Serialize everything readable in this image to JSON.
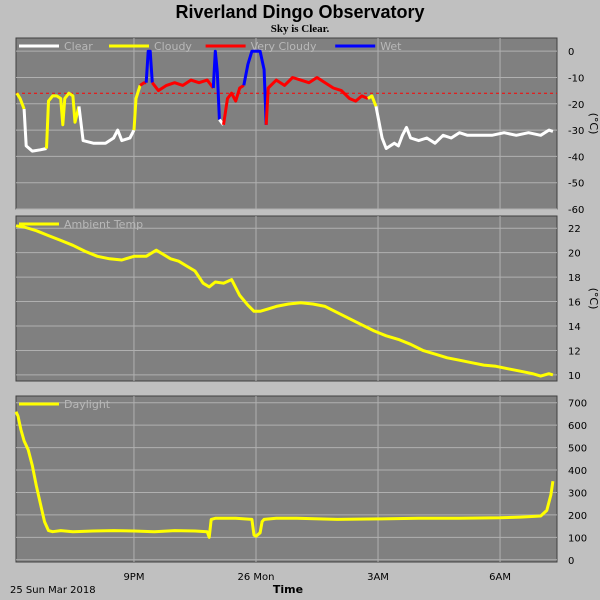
{
  "header": {
    "title": "Riverland Dingo Observatory",
    "subtitle": "Sky is Clear."
  },
  "x_axis": {
    "title": "Time",
    "start_label": "25 Sun Mar 2018",
    "ticks": [
      {
        "label": "9PM",
        "hour": 21
      },
      {
        "label": "26 Mon",
        "hour": 24
      },
      {
        "label": "3AM",
        "hour": 27
      },
      {
        "label": "6AM",
        "hour": 30
      }
    ]
  },
  "colors": {
    "background": "#c0c0c0",
    "plot_bg": "#808080",
    "grid": "#b0b0b0",
    "clear": "#ffffff",
    "cloudy": "#ffff00",
    "very_cloudy": "#ff0000",
    "wet": "#0000ff",
    "temp": "#ffff00",
    "daylight": "#ffff00",
    "threshold": "#ff0000"
  },
  "chart_data": [
    {
      "type": "line",
      "id": "sky",
      "unit": "(°C)",
      "ylim": [
        -60,
        5
      ],
      "yticks": [
        0,
        -10,
        -20,
        -30,
        -40,
        -50,
        -60
      ],
      "threshold": -16,
      "legend": [
        {
          "label": "Clear",
          "color_key": "clear"
        },
        {
          "label": "Cloudy",
          "color_key": "cloudy"
        },
        {
          "label": "Very Cloudy",
          "color_key": "very_cloudy"
        },
        {
          "label": "Wet",
          "color_key": "wet"
        }
      ],
      "segments": [
        {
          "state": "cloudy",
          "points": [
            [
              18.12,
              -16
            ],
            [
              18.2,
              -18
            ],
            [
              18.3,
              -22
            ]
          ]
        },
        {
          "state": "clear",
          "points": [
            [
              18.3,
              -22
            ],
            [
              18.35,
              -36
            ],
            [
              18.5,
              -38
            ],
            [
              18.7,
              -37.5
            ],
            [
              18.85,
              -37
            ]
          ]
        },
        {
          "state": "cloudy",
          "points": [
            [
              18.85,
              -37
            ],
            [
              18.9,
              -19
            ],
            [
              19.0,
              -17
            ],
            [
              19.1,
              -17
            ],
            [
              19.2,
              -18
            ],
            [
              19.25,
              -28
            ],
            [
              19.3,
              -18
            ],
            [
              19.4,
              -16
            ],
            [
              19.5,
              -17
            ],
            [
              19.55,
              -27
            ],
            [
              19.65,
              -21
            ]
          ]
        },
        {
          "state": "clear",
          "points": [
            [
              19.65,
              -21
            ],
            [
              19.75,
              -34
            ],
            [
              20.0,
              -35
            ],
            [
              20.3,
              -35
            ],
            [
              20.5,
              -33
            ],
            [
              20.6,
              -30
            ],
            [
              20.7,
              -34
            ],
            [
              20.9,
              -33
            ],
            [
              21.0,
              -30
            ]
          ]
        },
        {
          "state": "cloudy",
          "points": [
            [
              21.0,
              -30
            ],
            [
              21.05,
              -18
            ],
            [
              21.15,
              -13
            ]
          ]
        },
        {
          "state": "very_cloudy",
          "points": [
            [
              21.15,
              -13
            ],
            [
              21.25,
              -12
            ],
            [
              21.3,
              -12
            ]
          ]
        },
        {
          "state": "wet",
          "points": [
            [
              21.3,
              -12
            ],
            [
              21.35,
              0
            ],
            [
              21.4,
              0
            ],
            [
              21.45,
              -12
            ]
          ]
        },
        {
          "state": "very_cloudy",
          "points": [
            [
              21.45,
              -12
            ],
            [
              21.6,
              -15
            ],
            [
              21.8,
              -13
            ],
            [
              22.0,
              -12
            ],
            [
              22.2,
              -13
            ],
            [
              22.4,
              -11
            ],
            [
              22.6,
              -12
            ],
            [
              22.8,
              -11
            ],
            [
              22.95,
              -14
            ]
          ]
        },
        {
          "state": "wet",
          "points": [
            [
              22.95,
              -14
            ],
            [
              23.0,
              0
            ],
            [
              23.05,
              -8
            ],
            [
              23.1,
              -26
            ]
          ]
        },
        {
          "state": "clear",
          "points": [
            [
              23.1,
              -26
            ],
            [
              23.2,
              -28
            ]
          ]
        },
        {
          "state": "very_cloudy",
          "points": [
            [
              23.2,
              -28
            ],
            [
              23.3,
              -18
            ],
            [
              23.4,
              -16
            ],
            [
              23.5,
              -19
            ],
            [
              23.6,
              -14
            ],
            [
              23.7,
              -13
            ]
          ]
        },
        {
          "state": "wet",
          "points": [
            [
              23.7,
              -13
            ],
            [
              23.8,
              -5
            ],
            [
              23.9,
              0
            ],
            [
              24.1,
              0
            ],
            [
              24.2,
              -7
            ],
            [
              24.25,
              -28
            ]
          ]
        },
        {
          "state": "very_cloudy",
          "points": [
            [
              24.25,
              -28
            ],
            [
              24.3,
              -14
            ],
            [
              24.5,
              -11
            ],
            [
              24.7,
              -13
            ],
            [
              24.9,
              -10
            ],
            [
              25.1,
              -11
            ],
            [
              25.3,
              -12
            ],
            [
              25.5,
              -10
            ],
            [
              25.7,
              -12
            ],
            [
              25.9,
              -14
            ],
            [
              26.1,
              -15
            ],
            [
              26.3,
              -18
            ],
            [
              26.45,
              -19
            ],
            [
              26.6,
              -17
            ],
            [
              26.75,
              -18
            ]
          ]
        },
        {
          "state": "cloudy",
          "points": [
            [
              26.75,
              -18
            ],
            [
              26.85,
              -17
            ],
            [
              26.95,
              -21
            ]
          ]
        },
        {
          "state": "clear",
          "points": [
            [
              26.95,
              -21
            ],
            [
              27.1,
              -33
            ],
            [
              27.2,
              -37
            ],
            [
              27.4,
              -35
            ],
            [
              27.5,
              -36
            ],
            [
              27.6,
              -32
            ],
            [
              27.7,
              -29
            ],
            [
              27.8,
              -33
            ],
            [
              28.0,
              -34
            ],
            [
              28.2,
              -33
            ],
            [
              28.4,
              -35
            ],
            [
              28.6,
              -32
            ],
            [
              28.8,
              -33
            ],
            [
              29.0,
              -31
            ],
            [
              29.2,
              -32
            ],
            [
              29.5,
              -32
            ],
            [
              29.8,
              -32
            ],
            [
              30.1,
              -31
            ],
            [
              30.4,
              -32
            ],
            [
              30.7,
              -31
            ],
            [
              31.0,
              -32
            ],
            [
              31.2,
              -30
            ],
            [
              31.3,
              -30.5
            ]
          ]
        }
      ]
    },
    {
      "type": "line",
      "id": "temp",
      "unit": "(°C)",
      "ylim": [
        9.5,
        23
      ],
      "yticks": [
        22,
        20,
        18,
        16,
        14,
        12,
        10
      ],
      "legend": [
        {
          "label": "Ambient Temp",
          "color_key": "temp"
        }
      ],
      "x": [
        18.1,
        18.3,
        18.6,
        18.9,
        19.2,
        19.5,
        19.8,
        20.1,
        20.4,
        20.7,
        21.0,
        21.3,
        21.55,
        21.7,
        21.9,
        22.1,
        22.3,
        22.5,
        22.7,
        22.85,
        23.0,
        23.2,
        23.4,
        23.6,
        23.8,
        23.95,
        24.1,
        24.3,
        24.5,
        24.8,
        25.1,
        25.4,
        25.7,
        26.0,
        26.3,
        26.6,
        26.9,
        27.2,
        27.5,
        27.8,
        28.1,
        28.4,
        28.7,
        29.0,
        29.3,
        29.6,
        29.9,
        30.2,
        30.5,
        30.8,
        31.0,
        31.2,
        31.3
      ],
      "y": [
        22.2,
        22.1,
        21.8,
        21.4,
        21.0,
        20.6,
        20.1,
        19.7,
        19.5,
        19.4,
        19.7,
        19.7,
        20.2,
        19.9,
        19.5,
        19.3,
        18.9,
        18.5,
        17.5,
        17.2,
        17.6,
        17.5,
        17.8,
        16.5,
        15.7,
        15.2,
        15.2,
        15.4,
        15.6,
        15.8,
        15.9,
        15.8,
        15.6,
        15.1,
        14.6,
        14.1,
        13.6,
        13.2,
        12.9,
        12.5,
        12.0,
        11.7,
        11.4,
        11.2,
        11.0,
        10.8,
        10.7,
        10.5,
        10.3,
        10.1,
        9.9,
        10.1,
        10.0
      ]
    },
    {
      "type": "line",
      "id": "daylight",
      "unit": "",
      "ylim": [
        -10,
        730
      ],
      "yticks": [
        700,
        600,
        500,
        400,
        300,
        200,
        100,
        0
      ],
      "legend": [
        {
          "label": "Daylight",
          "color_key": "daylight"
        }
      ],
      "x": [
        18.1,
        18.15,
        18.22,
        18.3,
        18.4,
        18.5,
        18.6,
        18.7,
        18.8,
        18.85,
        18.9,
        19.0,
        19.2,
        19.5,
        20.0,
        20.5,
        21.0,
        21.5,
        22.0,
        22.5,
        22.8,
        22.85,
        22.9,
        23.0,
        23.5,
        23.9,
        23.95,
        24.0,
        24.1,
        24.15,
        24.2,
        24.5,
        25.0,
        26.0,
        27.0,
        28.0,
        29.0,
        30.0,
        30.5,
        31.0,
        31.15,
        31.25,
        31.3
      ],
      "y": [
        660,
        640,
        580,
        530,
        490,
        420,
        330,
        250,
        170,
        150,
        130,
        125,
        130,
        125,
        128,
        130,
        128,
        125,
        130,
        128,
        125,
        100,
        180,
        185,
        185,
        180,
        110,
        105,
        120,
        170,
        180,
        185,
        185,
        180,
        182,
        185,
        185,
        187,
        190,
        195,
        220,
        290,
        350
      ]
    }
  ]
}
